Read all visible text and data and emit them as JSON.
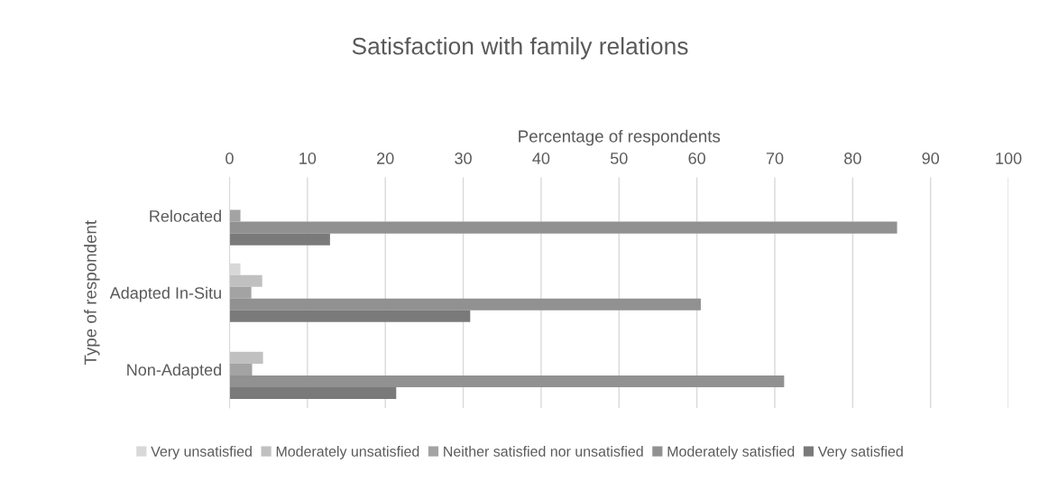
{
  "chart_data": {
    "type": "bar",
    "orientation": "horizontal",
    "title": "Satisfaction with family relations",
    "xlabel": "Percentage of respondents",
    "ylabel": "Type of respondent",
    "categories": [
      "Relocated",
      "Adapted In-Situ",
      "Non-Adapted"
    ],
    "series": [
      {
        "name": "Very unsatisfied",
        "color": "#d8d8d8",
        "values": [
          0,
          1.4,
          0
        ]
      },
      {
        "name": "Moderately unsatisfied",
        "color": "#c0c0c0",
        "values": [
          0,
          4.2,
          4.3
        ]
      },
      {
        "name": "Neither satisfied nor unsatisfied",
        "color": "#a3a3a3",
        "values": [
          1.4,
          2.8,
          2.9
        ]
      },
      {
        "name": "Moderately satisfied",
        "color": "#919191",
        "values": [
          85.7,
          60.5,
          71.2
        ]
      },
      {
        "name": "Very satisfied",
        "color": "#7a7a7a",
        "values": [
          12.9,
          30.9,
          21.4
        ]
      }
    ],
    "xlim": [
      0,
      100
    ],
    "xticks": [
      0,
      10,
      20,
      30,
      40,
      50,
      60,
      70,
      80,
      90,
      100
    ],
    "grid": "x",
    "legend": "bottom"
  }
}
